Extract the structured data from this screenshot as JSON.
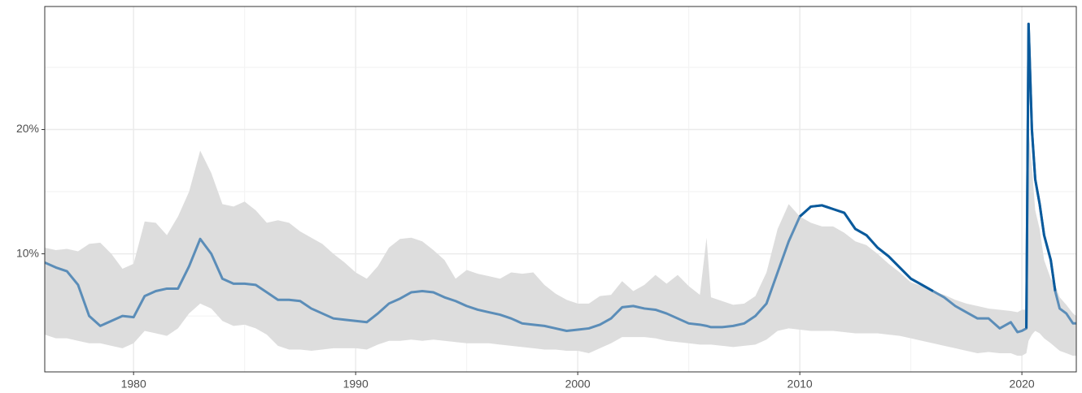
{
  "chart_data": {
    "type": "line",
    "x": [
      1976.0,
      1976.5,
      1977.0,
      1977.5,
      1978.0,
      1978.5,
      1979.0,
      1979.5,
      1980.0,
      1980.5,
      1981.0,
      1981.5,
      1982.0,
      1982.5,
      1983.0,
      1983.5,
      1984.0,
      1984.5,
      1985.0,
      1985.5,
      1986.0,
      1986.5,
      1987.0,
      1987.5,
      1988.0,
      1988.5,
      1989.0,
      1989.5,
      1990.0,
      1990.5,
      1991.0,
      1991.5,
      1992.0,
      1992.5,
      1993.0,
      1993.5,
      1994.0,
      1994.5,
      1995.0,
      1995.5,
      1996.0,
      1996.5,
      1997.0,
      1997.5,
      1998.0,
      1998.5,
      1999.0,
      1999.5,
      2000.0,
      2000.5,
      2001.0,
      2001.5,
      2002.0,
      2002.5,
      2003.0,
      2003.5,
      2004.0,
      2004.5,
      2005.0,
      2005.5,
      2005.8,
      2006.0,
      2006.5,
      2007.0,
      2007.5,
      2008.0,
      2008.5,
      2009.0,
      2009.5,
      2010.0,
      2010.5,
      2011.0,
      2011.5,
      2012.0,
      2012.5,
      2013.0,
      2013.5,
      2014.0,
      2014.5,
      2015.0,
      2015.5,
      2016.0,
      2016.5,
      2017.0,
      2017.5,
      2018.0,
      2018.5,
      2019.0,
      2019.5,
      2019.8,
      2020.0,
      2020.2,
      2020.3,
      2020.45,
      2020.6,
      2020.8,
      2021.0,
      2021.3,
      2021.5,
      2021.7,
      2022.0,
      2022.3,
      2022.45
    ],
    "values": [
      9.3,
      8.9,
      8.6,
      7.5,
      5.0,
      4.2,
      4.6,
      5.0,
      4.9,
      6.6,
      7.0,
      7.2,
      7.2,
      9.0,
      11.2,
      10.0,
      8.0,
      7.6,
      7.6,
      7.5,
      6.9,
      6.3,
      6.3,
      6.2,
      5.6,
      5.2,
      4.8,
      4.7,
      4.6,
      4.5,
      5.2,
      6.0,
      6.4,
      6.9,
      7.0,
      6.9,
      6.5,
      6.2,
      5.8,
      5.5,
      5.3,
      5.1,
      4.8,
      4.4,
      4.3,
      4.2,
      4.0,
      3.8,
      3.9,
      4.0,
      4.3,
      4.8,
      5.7,
      5.8,
      5.6,
      5.5,
      5.2,
      4.8,
      4.4,
      4.3,
      4.2,
      4.1,
      4.1,
      4.2,
      4.4,
      5.0,
      6.0,
      8.5,
      11.0,
      13.0,
      13.8,
      13.9,
      13.6,
      13.3,
      12.0,
      11.5,
      10.5,
      9.8,
      8.9,
      8.0,
      7.5,
      7.0,
      6.5,
      5.8,
      5.3,
      4.8,
      4.8,
      4.0,
      4.5,
      3.7,
      3.8,
      4.0,
      28.5,
      20.0,
      16.0,
      14.0,
      11.5,
      9.5,
      7.0,
      5.6,
      5.2,
      4.4,
      4.4
    ],
    "lower": [
      3.5,
      3.2,
      3.2,
      3.0,
      2.8,
      2.8,
      2.6,
      2.4,
      2.8,
      3.8,
      3.6,
      3.4,
      4.0,
      5.2,
      6.0,
      5.6,
      4.6,
      4.2,
      4.3,
      4.0,
      3.5,
      2.6,
      2.3,
      2.3,
      2.2,
      2.3,
      2.4,
      2.4,
      2.4,
      2.3,
      2.7,
      3.0,
      3.0,
      3.1,
      3.0,
      3.1,
      3.0,
      2.9,
      2.8,
      2.8,
      2.8,
      2.7,
      2.6,
      2.5,
      2.4,
      2.3,
      2.3,
      2.2,
      2.2,
      2.0,
      2.4,
      2.8,
      3.3,
      3.3,
      3.3,
      3.2,
      3.0,
      2.9,
      2.8,
      2.7,
      2.7,
      2.7,
      2.6,
      2.5,
      2.6,
      2.7,
      3.1,
      3.8,
      4.0,
      3.9,
      3.8,
      3.8,
      3.8,
      3.7,
      3.6,
      3.6,
      3.6,
      3.5,
      3.4,
      3.2,
      3.0,
      2.8,
      2.6,
      2.4,
      2.2,
      2.0,
      2.1,
      2.0,
      2.0,
      1.8,
      1.8,
      2.0,
      3.0,
      3.5,
      3.8,
      3.6,
      3.2,
      2.8,
      2.5,
      2.2,
      2.0,
      1.8,
      1.8
    ],
    "upper": [
      10.5,
      10.3,
      10.4,
      10.2,
      10.8,
      10.9,
      10.0,
      8.8,
      9.2,
      12.6,
      12.5,
      11.5,
      13.0,
      15.0,
      18.3,
      16.5,
      14.0,
      13.8,
      14.2,
      13.5,
      12.5,
      12.7,
      12.5,
      11.8,
      11.3,
      10.8,
      10.0,
      9.3,
      8.5,
      8.0,
      9.0,
      10.5,
      11.2,
      11.3,
      11.0,
      10.3,
      9.5,
      8.0,
      8.7,
      8.4,
      8.2,
      8.0,
      8.5,
      8.4,
      8.5,
      7.5,
      6.8,
      6.3,
      6.0,
      6.0,
      6.6,
      6.7,
      7.8,
      7.0,
      7.5,
      8.3,
      7.6,
      8.3,
      7.4,
      6.7,
      11.3,
      6.5,
      6.2,
      5.9,
      6.0,
      6.6,
      8.5,
      12.0,
      14.0,
      13.0,
      12.5,
      12.2,
      12.2,
      11.7,
      11.0,
      10.7,
      10.0,
      9.2,
      8.5,
      7.7,
      7.4,
      7.0,
      6.7,
      6.3,
      6.0,
      5.8,
      5.6,
      5.5,
      5.4,
      5.3,
      5.5,
      5.5,
      20.0,
      17.0,
      13.5,
      12.0,
      9.5,
      8.0,
      7.5,
      6.5,
      5.9,
      5.2,
      5.0
    ],
    "color": "#5b8db8",
    "highlight_color": "#0a5a9c",
    "band_color": "#dddddd",
    "xlim": [
      1976.0,
      2022.45
    ],
    "ylim": [
      0.5,
      29.9
    ],
    "xticks": [
      1980,
      1990,
      2000,
      2010,
      2020
    ],
    "xminor_ticks": [
      1985,
      1995,
      2005,
      2015
    ],
    "yticks": [
      {
        "value": 10,
        "label": "10%"
      },
      {
        "value": 20,
        "label": "20%"
      }
    ],
    "yminor_ticks": [
      5,
      15,
      25
    ],
    "grid": true
  }
}
